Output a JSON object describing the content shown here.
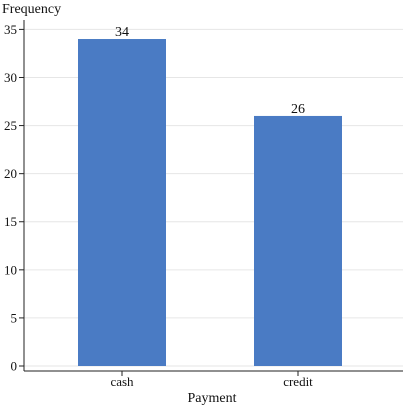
{
  "chart_data": {
    "type": "bar",
    "categories": [
      "cash",
      "credit"
    ],
    "values": [
      34,
      26
    ],
    "data_labels": [
      "34",
      "26"
    ],
    "xlabel": "Payment",
    "ylabel": "Frequency",
    "ylim": [
      0,
      36
    ],
    "yticks": [
      0,
      5,
      10,
      15,
      20,
      25,
      30,
      35
    ],
    "ytick_labels": [
      "0",
      "5",
      "10",
      "15",
      "20",
      "25",
      "30",
      "35"
    ],
    "grid": true,
    "bar_color": "#4a7bc4",
    "grid_color": "#e6e6e6",
    "axis_color": "#222222"
  }
}
